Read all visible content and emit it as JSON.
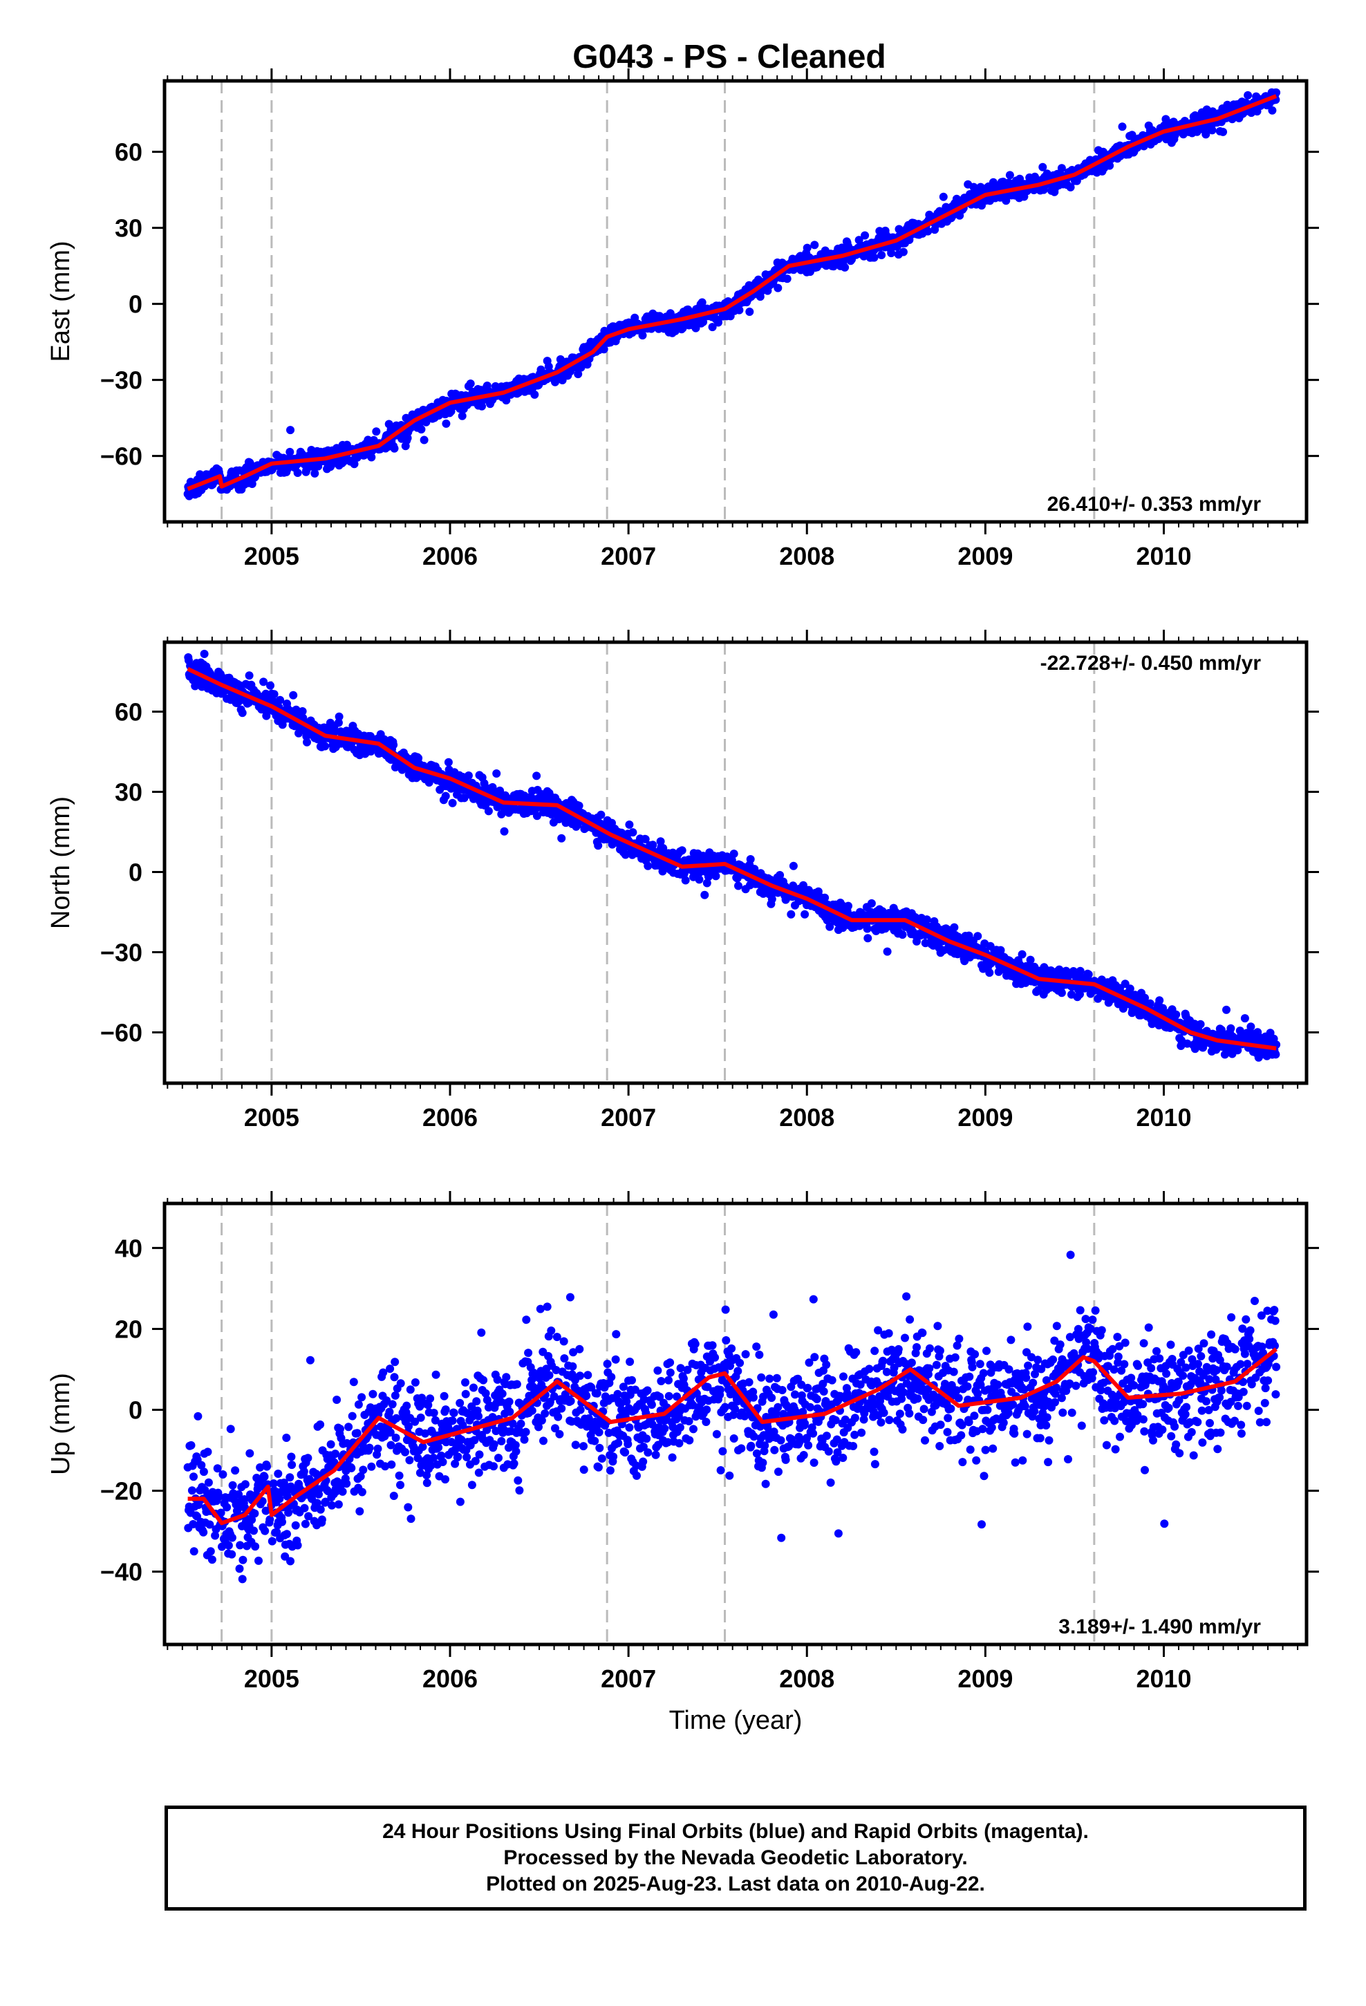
{
  "title": "G043  - PS - Cleaned",
  "footer": {
    "lines": [
      "24 Hour Positions Using Final Orbits (blue) and Rapid Orbits (magenta).",
      "Processed by the Nevada Geodetic Laboratory.",
      "Plotted on 2025-Aug-23. Last data on 2010-Aug-22."
    ]
  },
  "colors": {
    "points": "#0000ff",
    "fit": "#ff0000",
    "event_lines": "#bbbbbb",
    "frame": "#000000"
  },
  "chart_data": [
    {
      "type": "scatter",
      "component": "East",
      "ylabel": "East (mm)",
      "xlabel": "",
      "xlim": [
        2004.4,
        2010.8
      ],
      "ylim": [
        -86,
        88
      ],
      "yticks": [
        -60,
        -30,
        0,
        30,
        60
      ],
      "xticks": [
        2005,
        2006,
        2007,
        2008,
        2009,
        2010
      ],
      "rate_label": "26.410+/- 0.353 mm/yr",
      "rate_position": "bottom-right",
      "event_lines": [
        2004.72,
        2005.0,
        2006.88,
        2007.54,
        2009.61
      ],
      "scatter_sigma": 1.9,
      "fit": {
        "x": [
          2004.53,
          2004.71,
          2004.72,
          2004.85,
          2005.0,
          2005.3,
          2005.6,
          2005.8,
          2006.0,
          2006.3,
          2006.6,
          2006.8,
          2006.88,
          2007.0,
          2007.3,
          2007.54,
          2007.7,
          2007.9,
          2008.2,
          2008.5,
          2008.75,
          2009.0,
          2009.3,
          2009.5,
          2009.61,
          2009.8,
          2010.0,
          2010.3,
          2010.63
        ],
        "y": [
          -73,
          -68,
          -72,
          -68,
          -63,
          -61,
          -56,
          -46,
          -39,
          -35,
          -27,
          -19,
          -13,
          -10,
          -6,
          -2,
          5,
          15,
          19,
          25,
          34,
          43,
          47,
          51,
          55,
          62,
          68,
          73,
          82
        ]
      }
    },
    {
      "type": "scatter",
      "component": "North",
      "ylabel": "North (mm)",
      "xlabel": "",
      "xlim": [
        2004.4,
        2010.8
      ],
      "ylim": [
        -79,
        86
      ],
      "yticks": [
        -60,
        -30,
        0,
        30,
        60
      ],
      "xticks": [
        2005,
        2006,
        2007,
        2008,
        2009,
        2010
      ],
      "rate_label": "-22.728+/- 0.450 mm/yr",
      "rate_position": "top-right",
      "event_lines": [
        2004.72,
        2005.0,
        2006.88,
        2007.54,
        2009.61
      ],
      "scatter_sigma": 2.4,
      "fit": {
        "x": [
          2004.53,
          2004.72,
          2005.0,
          2005.3,
          2005.6,
          2005.8,
          2006.0,
          2006.3,
          2006.6,
          2006.9,
          2007.1,
          2007.3,
          2007.54,
          2007.8,
          2008.0,
          2008.25,
          2008.55,
          2008.8,
          2009.0,
          2009.3,
          2009.61,
          2009.9,
          2010.15,
          2010.3,
          2010.63
        ],
        "y": [
          76,
          70,
          62,
          51,
          48,
          39,
          35,
          26,
          25,
          14,
          8,
          2,
          3,
          -5,
          -10,
          -18,
          -18,
          -26,
          -31,
          -40,
          -42,
          -51,
          -60,
          -63,
          -66
        ]
      }
    },
    {
      "type": "scatter",
      "component": "Up",
      "ylabel": "Up (mm)",
      "xlabel": "Time (year)",
      "xlim": [
        2004.4,
        2010.8
      ],
      "ylim": [
        -58,
        51
      ],
      "yticks": [
        -40,
        -20,
        0,
        20,
        40
      ],
      "xticks": [
        2005,
        2006,
        2007,
        2008,
        2009,
        2010
      ],
      "rate_label": "3.189+/- 1.490 mm/yr",
      "rate_position": "bottom-right",
      "event_lines": [
        2004.72,
        2005.0,
        2006.88,
        2007.54,
        2009.61
      ],
      "scatter_sigma": 6.5,
      "fit": {
        "x": [
          2004.53,
          2004.62,
          2004.72,
          2004.85,
          2004.98,
          2005.0,
          2005.15,
          2005.35,
          2005.6,
          2005.85,
          2006.1,
          2006.35,
          2006.6,
          2006.9,
          2007.2,
          2007.45,
          2007.54,
          2007.75,
          2008.1,
          2008.4,
          2008.58,
          2008.85,
          2009.2,
          2009.4,
          2009.55,
          2009.61,
          2009.8,
          2010.1,
          2010.4,
          2010.63
        ],
        "y": [
          -22,
          -22,
          -28,
          -26,
          -19,
          -26,
          -21,
          -15,
          -2,
          -8,
          -5,
          -2,
          7,
          -3,
          -1,
          8,
          9,
          -3,
          -1,
          5,
          10,
          1,
          3,
          7,
          13,
          12,
          3,
          4,
          7,
          15
        ]
      }
    }
  ]
}
